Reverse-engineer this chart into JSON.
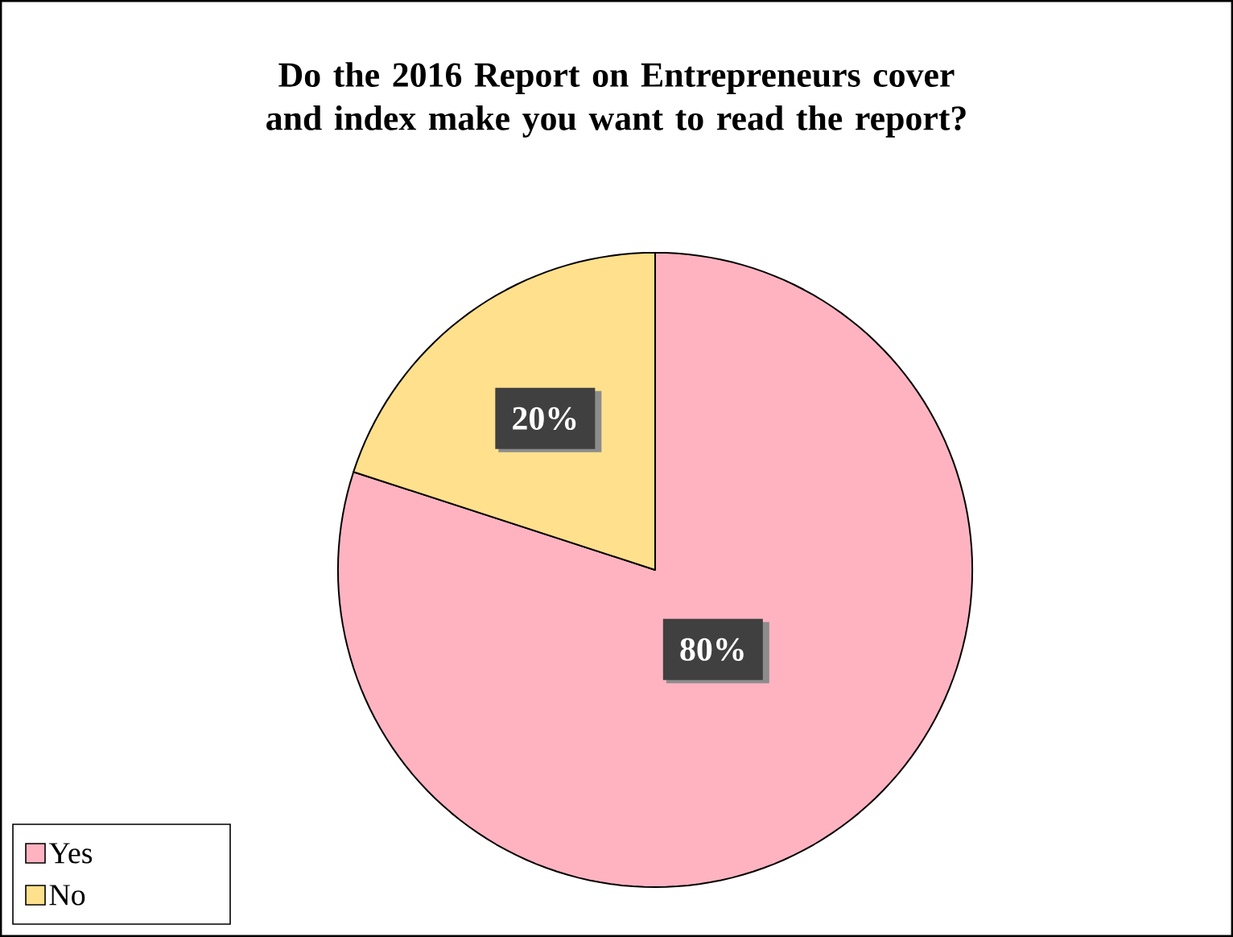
{
  "chart_data": {
    "type": "pie",
    "title": "Do the 2016 Report on Entrepreneurs cover and index make you want to read the report?",
    "categories": [
      "Yes",
      "No"
    ],
    "values": [
      80,
      20
    ],
    "colors": [
      "#ffb3c1",
      "#ffe08c"
    ],
    "value_labels": [
      "80%",
      "20%"
    ],
    "legend": "bottom left"
  }
}
